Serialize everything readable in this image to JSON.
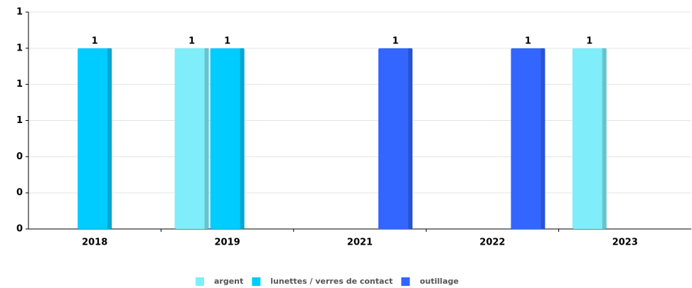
{
  "chart_data": {
    "type": "bar",
    "categories": [
      "2018",
      "2019",
      "2021",
      "2022",
      "2023"
    ],
    "series": [
      {
        "name": "argent",
        "color": "#80eefa",
        "values": [
          null,
          1,
          null,
          null,
          1
        ]
      },
      {
        "name": "lunettes / verres de contact",
        "color": "#00ccff",
        "values": [
          1,
          1,
          null,
          null,
          null
        ]
      },
      {
        "name": "outillage",
        "color": "#3366ff",
        "values": [
          null,
          null,
          1,
          1,
          null
        ]
      }
    ],
    "ylim": [
      0,
      1.2
    ],
    "yticks": [
      0,
      {
        "value": 0.2,
        "label": "0"
      },
      {
        "value": 0.4,
        "label": "0"
      },
      {
        "value": 0.6,
        "label": "1"
      },
      {
        "value": 0.8,
        "label": "1"
      },
      1,
      {
        "value": 1.2,
        "label": "1"
      }
    ],
    "grid": true,
    "legend": "bottom"
  }
}
